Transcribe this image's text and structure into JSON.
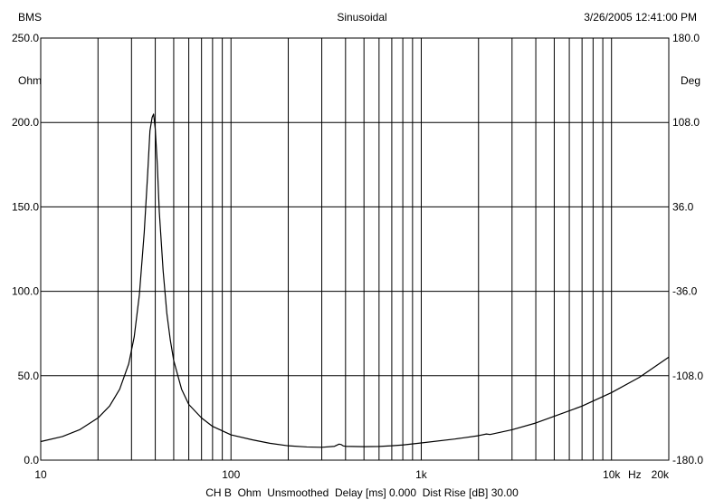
{
  "header": {
    "left": "BMS",
    "center": "Sinusoidal",
    "right": "3/26/2005 12:41:00 PM"
  },
  "footer": {
    "channel": "CH B",
    "unit": "Ohm",
    "smoothing": "Unsmoothed",
    "delay": "Delay [ms] 0.000",
    "dist_rise": "Dist Rise [dB] 30.00"
  },
  "chart_data": {
    "type": "line",
    "title": "",
    "xlabel": "Hz",
    "ylabel": "Ohm",
    "y2label": "Deg",
    "x_scale": "log",
    "xlim": [
      10,
      20000
    ],
    "ylim": [
      0,
      250
    ],
    "y2lim": [
      -180,
      180
    ],
    "grid": true,
    "x_tick_labels": [
      {
        "value": 10,
        "label": "10"
      },
      {
        "value": 100,
        "label": "100"
      },
      {
        "value": 1000,
        "label": "1k"
      },
      {
        "value": 10000,
        "label": "10k"
      },
      {
        "value": 20000,
        "label": "20k"
      }
    ],
    "y_tick_labels": [
      "250.0",
      "200.0",
      "150.0",
      "100.0",
      "50.0",
      "0.0"
    ],
    "y_ticks": [
      250,
      200,
      150,
      100,
      50,
      0
    ],
    "y2_tick_labels": [
      "180.0",
      "108.0",
      "36.0",
      "-36.0",
      "-108.0",
      "-180.0"
    ],
    "y2_ticks": [
      180,
      108,
      36,
      -36,
      -108,
      -180
    ],
    "series": [
      {
        "color": "#000000",
        "x": [
          10,
          13,
          16,
          20,
          23,
          26,
          29,
          31,
          33,
          35,
          36.5,
          37.5,
          38.5,
          39.2,
          40,
          41,
          42,
          44,
          46,
          48,
          50,
          55,
          60,
          70,
          80,
          100,
          130,
          160,
          200,
          250,
          300,
          350,
          370,
          380,
          390,
          400,
          500,
          600,
          700,
          800,
          1000,
          1500,
          2000,
          2200,
          2300,
          3000,
          4000,
          5000,
          7000,
          10000,
          14000,
          20000
        ],
        "y": [
          11,
          14,
          18,
          25,
          32,
          42,
          57,
          73,
          98,
          135,
          170,
          195,
          203,
          205,
          196,
          175,
          147,
          112,
          87,
          71,
          59,
          42,
          33,
          25,
          20,
          15,
          12,
          10,
          8.5,
          7.8,
          7.6,
          8.2,
          9.5,
          9.2,
          8.4,
          8.2,
          8.0,
          8.1,
          8.5,
          9.0,
          10.2,
          12.5,
          14.5,
          15.5,
          15.2,
          18,
          22,
          26,
          32,
          40,
          49,
          61
        ]
      }
    ]
  }
}
